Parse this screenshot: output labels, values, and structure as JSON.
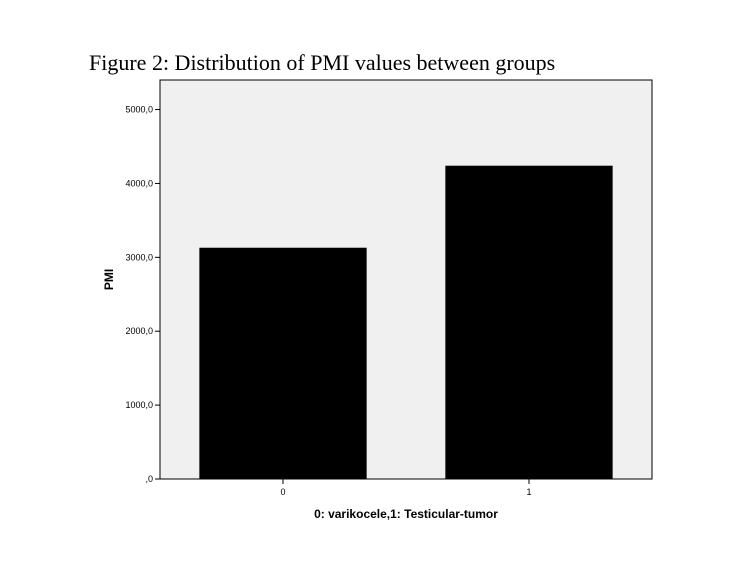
{
  "figure": {
    "caption": "Figure 2: Distribution of PMI values between groups"
  },
  "chart_data": {
    "type": "bar",
    "title": "",
    "xlabel": "0: varikocele,1: Testicular-tumor",
    "ylabel": "PMI",
    "categories": [
      "0",
      "1"
    ],
    "values": [
      3130,
      4240
    ],
    "ylim": [
      0,
      5400
    ],
    "yticks": [
      0,
      1000,
      2000,
      3000,
      4000,
      5000
    ],
    "ytick_labels": [
      ",0",
      "1000,0",
      "2000,0",
      "3000,0",
      "4000,0",
      "5000,0"
    ],
    "grid": false,
    "legend": "none",
    "colors": {
      "plot_background": "#f0f0f0",
      "bar_fill": "#000000",
      "axis": "#000000"
    }
  }
}
